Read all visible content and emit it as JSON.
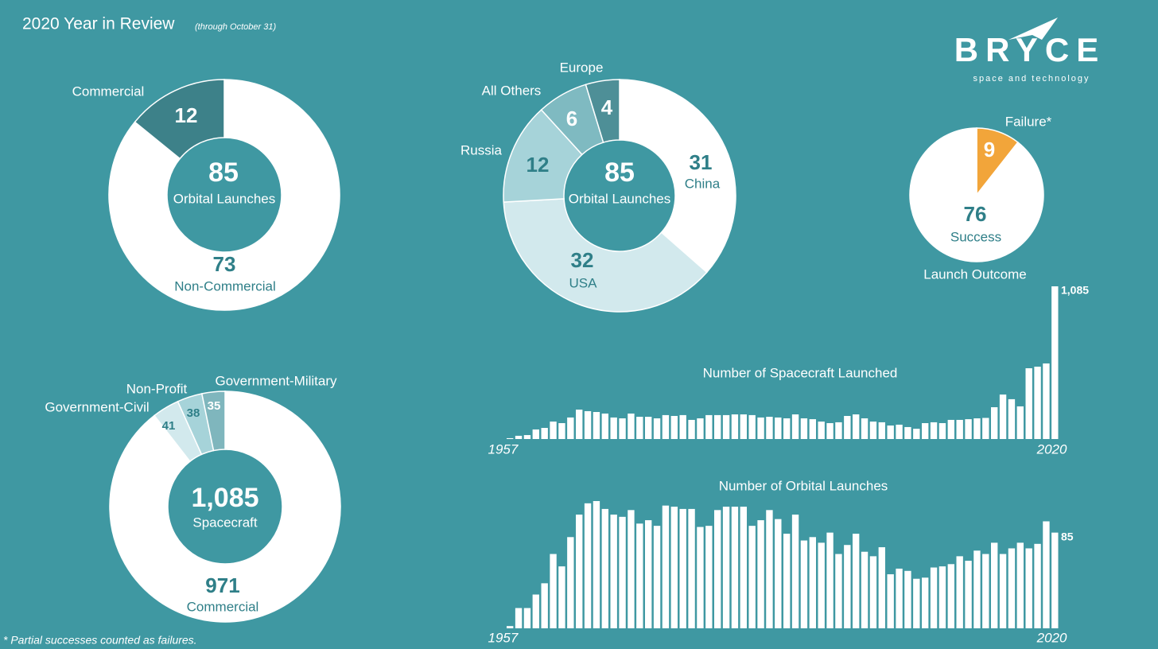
{
  "header": {
    "title": "2020 Year in Review",
    "subtitle": "(through October 31)"
  },
  "logo": {
    "name": "BRYCE",
    "tagline": "space and technology"
  },
  "footnote": "* Partial successes counted as failures.",
  "chart_data": [
    {
      "type": "donut",
      "total": 85,
      "total_label": "Orbital Launches",
      "categories": [
        "Non-Commercial",
        "Commercial"
      ],
      "values": [
        73,
        12
      ],
      "colors": [
        "#ffffff",
        "#3d8189"
      ]
    },
    {
      "type": "donut",
      "total": 85,
      "total_label": "Orbital Launches",
      "categories": [
        "China",
        "USA",
        "Russia",
        "All Others",
        "Europe"
      ],
      "values": [
        31,
        32,
        12,
        6,
        4
      ],
      "colors": [
        "#ffffff",
        "#d2e9ed",
        "#a6d3d9",
        "#7fbac1",
        "#4e8f97"
      ]
    },
    {
      "type": "pie",
      "title": "Launch Outcome",
      "categories": [
        "Failure*",
        "Success"
      ],
      "values": [
        9,
        76
      ],
      "colors": [
        "#f2a53a",
        "#ffffff"
      ]
    },
    {
      "type": "donut",
      "total": {
        "value": 1085,
        "label": "1,085"
      },
      "total_label": "Spacecraft",
      "categories": [
        "Commercial",
        "Government-Civil",
        "Non-Profit",
        "Government-Military"
      ],
      "values": [
        971,
        41,
        38,
        35
      ],
      "colors": [
        "#ffffff",
        "#d2e9ed",
        "#a6d3d9",
        "#7fb6bd"
      ]
    },
    {
      "type": "bar",
      "title": "Number of Spacecraft Launched",
      "color": "#ffffff",
      "categories": [
        "1957",
        null,
        null,
        null,
        null,
        null,
        null,
        null,
        null,
        null,
        null,
        null,
        null,
        null,
        null,
        null,
        null,
        null,
        null,
        null,
        null,
        null,
        null,
        null,
        null,
        null,
        null,
        null,
        null,
        null,
        null,
        null,
        null,
        null,
        null,
        null,
        null,
        null,
        null,
        null,
        null,
        null,
        null,
        null,
        null,
        null,
        null,
        null,
        null,
        null,
        null,
        null,
        null,
        null,
        null,
        null,
        null,
        null,
        null,
        null,
        null,
        null,
        null,
        "2020"
      ],
      "values": [
        6,
        23,
        28,
        68,
        79,
        124,
        113,
        153,
        209,
        198,
        192,
        181,
        153,
        147,
        181,
        158,
        158,
        147,
        170,
        164,
        170,
        136,
        147,
        170,
        170,
        170,
        175,
        175,
        170,
        153,
        158,
        153,
        147,
        175,
        147,
        141,
        124,
        113,
        119,
        164,
        175,
        147,
        124,
        119,
        96,
        102,
        85,
        73,
        113,
        119,
        113,
        136,
        136,
        141,
        147,
        150,
        226,
        316,
        283,
        232,
        503,
        514,
        537,
        1085
      ],
      "value_labels": [
        null,
        null,
        null,
        null,
        null,
        null,
        null,
        null,
        null,
        null,
        null,
        null,
        null,
        null,
        null,
        null,
        null,
        null,
        null,
        null,
        null,
        null,
        null,
        null,
        null,
        null,
        null,
        null,
        null,
        null,
        null,
        null,
        null,
        null,
        null,
        null,
        null,
        null,
        null,
        null,
        null,
        null,
        null,
        null,
        null,
        null,
        null,
        null,
        null,
        null,
        null,
        null,
        null,
        null,
        null,
        null,
        null,
        null,
        null,
        null,
        null,
        null,
        null,
        "1,085"
      ]
    },
    {
      "type": "bar",
      "title": "Number of Orbital Launches",
      "color": "#ffffff",
      "categories": [
        "1957",
        null,
        null,
        null,
        null,
        null,
        null,
        null,
        null,
        null,
        null,
        null,
        null,
        null,
        null,
        null,
        null,
        null,
        null,
        null,
        null,
        null,
        null,
        null,
        null,
        null,
        null,
        null,
        null,
        null,
        null,
        null,
        null,
        null,
        null,
        null,
        null,
        null,
        null,
        null,
        null,
        null,
        null,
        null,
        null,
        null,
        null,
        null,
        null,
        null,
        null,
        null,
        null,
        null,
        null,
        null,
        null,
        null,
        null,
        null,
        null,
        null,
        null,
        "2020"
      ],
      "values": [
        2,
        18,
        18,
        30,
        40,
        66,
        55,
        81,
        101,
        111,
        113,
        106,
        101,
        99,
        105,
        93,
        96,
        91,
        109,
        108,
        106,
        106,
        90,
        91,
        105,
        108,
        108,
        108,
        91,
        96,
        105,
        97,
        84,
        101,
        78,
        81,
        76,
        85,
        66,
        74,
        84,
        68,
        64,
        72,
        48,
        53,
        51,
        44,
        45,
        54,
        55,
        57,
        64,
        60,
        69,
        66,
        76,
        66,
        71,
        76,
        71,
        75,
        95,
        85
      ],
      "value_labels": [
        null,
        null,
        null,
        null,
        null,
        null,
        null,
        null,
        null,
        null,
        null,
        null,
        null,
        null,
        null,
        null,
        null,
        null,
        null,
        null,
        null,
        null,
        null,
        null,
        null,
        null,
        null,
        null,
        null,
        null,
        null,
        null,
        null,
        null,
        null,
        null,
        null,
        null,
        null,
        null,
        null,
        null,
        null,
        null,
        null,
        null,
        null,
        null,
        null,
        null,
        null,
        null,
        null,
        null,
        null,
        null,
        null,
        null,
        null,
        null,
        null,
        null,
        null,
        "85"
      ]
    }
  ]
}
